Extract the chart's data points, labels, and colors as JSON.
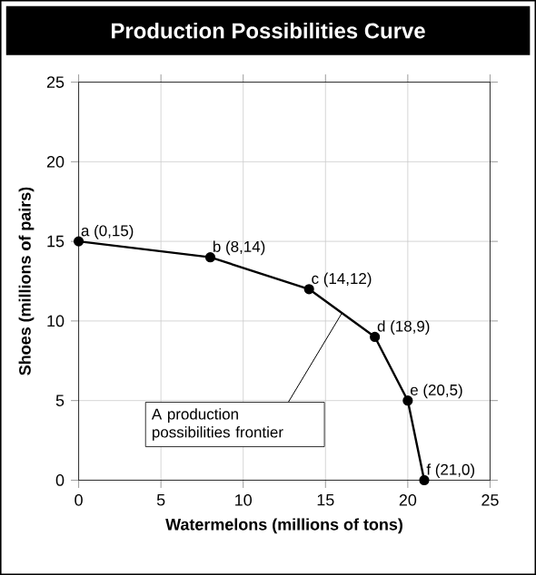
{
  "chart_data": {
    "type": "line",
    "title": "Production Possibilities Curve",
    "xlabel": "Watermelons (millions of tons)",
    "ylabel": "Shoes (millions of pairs)",
    "x": [
      0,
      8,
      14,
      18,
      20,
      21
    ],
    "series": [
      {
        "color": "#000000",
        "values": [
          15,
          14,
          12,
          9,
          5,
          0
        ]
      }
    ],
    "xlim": [
      0,
      25
    ],
    "ylim": [
      0,
      25
    ],
    "xticks": [
      0,
      5,
      10,
      15,
      20,
      25
    ],
    "yticks": [
      0,
      5,
      10,
      15,
      20,
      25
    ],
    "grid": true,
    "marker": "circle",
    "line_style": "solid",
    "annotations": [
      {
        "text": "a (0,15)",
        "x": 0,
        "y": 15
      },
      {
        "text": "b (8,14)",
        "x": 8,
        "y": 14
      },
      {
        "text": "c (14,12)",
        "x": 14,
        "y": 12
      },
      {
        "text": "d (18,9)",
        "x": 18,
        "y": 9
      },
      {
        "text": "e (20,5)",
        "x": 20,
        "y": 5
      },
      {
        "text": "f (21,0)",
        "x": 21,
        "y": 0
      },
      {
        "text": "A production possibilities frontier",
        "x": 16,
        "y": 10.5
      }
    ]
  }
}
